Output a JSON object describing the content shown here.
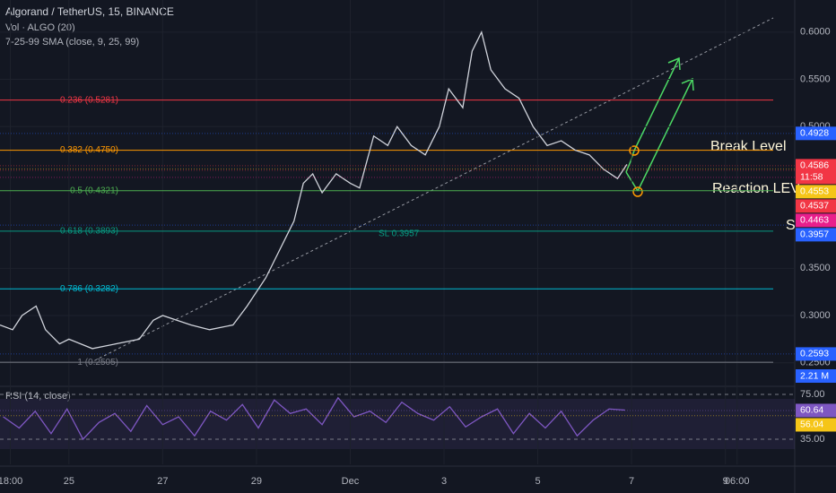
{
  "header": {
    "title": "Algorand / TetherUS, 15, BINANCE",
    "indicators": [
      "Vol · ALGO (20)",
      "7-25-99 SMA (close, 9, 25, 99)"
    ]
  },
  "chart_data": [
    {
      "type": "line",
      "color": "#d1d4dc",
      "xlim": [
        -0.47,
        16.48
      ],
      "xticks": [
        {
          "value": -0.25,
          "label": "18:00"
        },
        {
          "value": 1,
          "label": "25"
        },
        {
          "value": 3,
          "label": "27"
        },
        {
          "value": 5,
          "label": "29"
        },
        {
          "value": 7,
          "label": "Dec"
        },
        {
          "value": 9,
          "label": "3"
        },
        {
          "value": 11,
          "label": "5"
        },
        {
          "value": 13,
          "label": "7"
        },
        {
          "value": 15,
          "label": "9"
        },
        {
          "value": 15.25,
          "label": "06:00"
        }
      ],
      "ylim": [
        0.226,
        0.634
      ],
      "yticks": [
        {
          "value": 0.25,
          "label": "0.2500"
        },
        {
          "value": 0.3,
          "label": "0.3000"
        },
        {
          "value": 0.35,
          "label": "0.3500"
        },
        {
          "value": 0.5,
          "label": "0.5000"
        },
        {
          "value": 0.55,
          "label": "0.5500"
        },
        {
          "value": 0.6,
          "label": "0.6000"
        }
      ],
      "x": [
        -0.47,
        -0.2,
        0.0,
        0.3,
        0.5,
        0.8,
        1.0,
        1.5,
        2.0,
        2.5,
        2.8,
        3.0,
        3.3,
        3.6,
        4.0,
        4.5,
        4.8,
        5.2,
        5.5,
        5.8,
        6.0,
        6.2,
        6.4,
        6.7,
        7.0,
        7.2,
        7.5,
        7.8,
        8.0,
        8.3,
        8.6,
        8.9,
        9.1,
        9.4,
        9.6,
        9.8,
        10.0,
        10.3,
        10.6,
        10.9,
        11.2,
        11.5,
        11.8,
        12.1,
        12.4,
        12.7,
        12.9
      ],
      "values": [
        0.29,
        0.285,
        0.3,
        0.31,
        0.285,
        0.27,
        0.275,
        0.265,
        0.27,
        0.275,
        0.295,
        0.3,
        0.295,
        0.29,
        0.285,
        0.29,
        0.31,
        0.34,
        0.37,
        0.4,
        0.44,
        0.45,
        0.43,
        0.45,
        0.44,
        0.435,
        0.49,
        0.48,
        0.5,
        0.48,
        0.47,
        0.5,
        0.54,
        0.52,
        0.58,
        0.6,
        0.56,
        0.54,
        0.53,
        0.5,
        0.48,
        0.485,
        0.475,
        0.47,
        0.455,
        0.445,
        0.46
      ],
      "levels": [
        {
          "value": 0.5281,
          "label": "0.236 (0.5281)",
          "color": "#f23645"
        },
        {
          "value": 0.475,
          "label": "0.382 (0.4750)",
          "color": "#ff9800"
        },
        {
          "value": 0.4321,
          "label": "0.5 (0.4321)",
          "color": "#4caf50"
        },
        {
          "value": 0.3893,
          "label": "0.618 (0.3893)",
          "color": "#089981"
        },
        {
          "value": 0.3282,
          "label": "0.786 (0.3282)",
          "color": "#00bcd4"
        },
        {
          "value": 0.2505,
          "label": "1 (0.2505)",
          "color": "#787b86"
        }
      ],
      "price_labels": [
        {
          "value": 0.4928,
          "label": "0.4928",
          "color": "#2962ff"
        },
        {
          "value": 0.4586,
          "label": "0.4586",
          "sub": "11:58",
          "color": "#f23645"
        },
        {
          "value": 0.4553,
          "label": "0.4553",
          "color": "#f5c518"
        },
        {
          "value": 0.4537,
          "label": "0.4537",
          "color": "#f23645"
        },
        {
          "value": 0.4463,
          "label": "0.4463",
          "color": "#e91e8c"
        },
        {
          "value": 0.3957,
          "label": "0.3957",
          "color": "#2962ff"
        },
        {
          "value": 0.2593,
          "label": "0.2593",
          "color": "#2962ff"
        }
      ],
      "volume_label": "2.21 M",
      "annotations": [
        "Break Level",
        "Reaction LEV",
        "SL 0.3957",
        "S"
      ]
    },
    {
      "type": "line",
      "title": "RSI (14, close)",
      "color": "#7e57c2",
      "xlim": [
        -0.47,
        16.48
      ],
      "ylim": [
        12.6,
        81.4
      ],
      "yticks": [
        {
          "value": 75,
          "label": "75.00"
        },
        {
          "value": 35,
          "label": "35.00"
        }
      ],
      "x": [
        -0.4,
        -0.06,
        0.28,
        0.62,
        0.96,
        1.3,
        1.64,
        1.98,
        2.32,
        2.66,
        3.0,
        3.34,
        3.68,
        4.02,
        4.36,
        4.7,
        5.04,
        5.38,
        5.72,
        6.06,
        6.4,
        6.74,
        7.08,
        7.42,
        7.76,
        8.1,
        8.44,
        8.78,
        9.12,
        9.46,
        9.8,
        10.14,
        10.48,
        10.82,
        11.16,
        11.5,
        11.84,
        12.18,
        12.52,
        12.86
      ],
      "values": [
        55,
        45,
        60,
        40,
        62,
        35,
        50,
        58,
        42,
        65,
        48,
        55,
        38,
        60,
        52,
        66,
        45,
        70,
        58,
        62,
        48,
        72,
        55,
        60,
        50,
        68,
        58,
        52,
        64,
        46,
        55,
        62,
        40,
        58,
        45,
        60,
        38,
        52,
        62,
        61
      ],
      "price_labels": [
        {
          "value": 60.64,
          "label": "60.64",
          "color": "#7e57c2"
        },
        {
          "value": 56.04,
          "label": "56.04",
          "color": "#f5c518"
        }
      ]
    }
  ]
}
